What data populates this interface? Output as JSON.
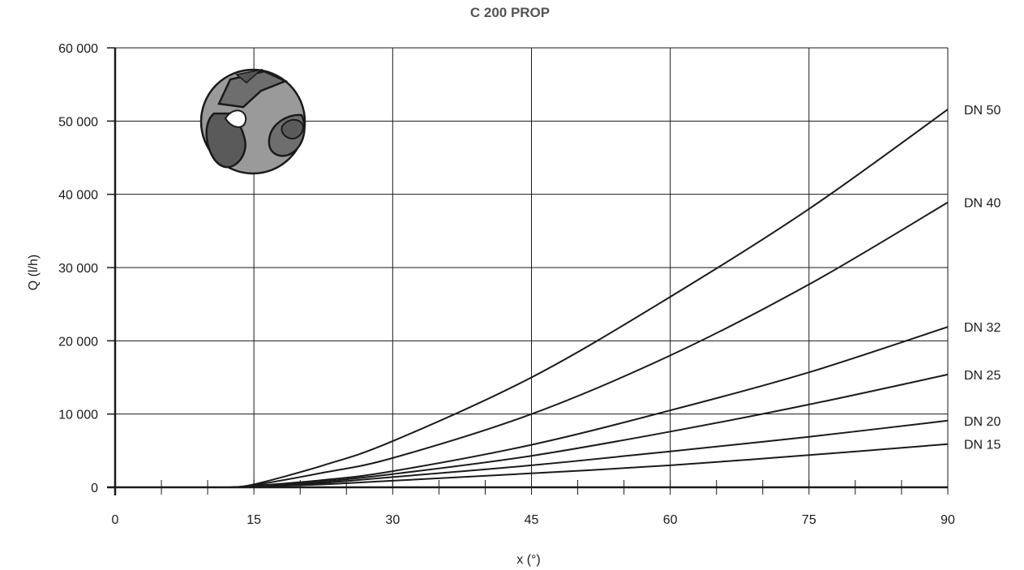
{
  "chart_data": {
    "type": "line",
    "title": "C 200 PROP",
    "xlabel": "x (°)",
    "ylabel": "Q (l/h)",
    "xlim": [
      0,
      90
    ],
    "ylim": [
      0,
      60000
    ],
    "x_ticks": [
      "0",
      "15",
      "30",
      "45",
      "60",
      "75",
      "90"
    ],
    "y_ticks": [
      "0",
      "10 000",
      "20 000",
      "30 000",
      "40 000",
      "50 000",
      "60 000"
    ],
    "grid": true,
    "line_color": "#1a1a1a",
    "series": [
      {
        "name": "DN 50",
        "x": [
          12.5,
          15,
          22.5,
          30,
          45,
          60,
          75,
          90
        ],
        "y": [
          0,
          400,
          3000,
          6300,
          15000,
          26000,
          38000,
          51600
        ]
      },
      {
        "name": "DN 40",
        "x": [
          12.5,
          15,
          22.5,
          30,
          45,
          60,
          75,
          90
        ],
        "y": [
          0,
          300,
          2000,
          4000,
          10000,
          18000,
          27700,
          38900
        ]
      },
      {
        "name": "DN 32",
        "x": [
          12.5,
          15,
          22.5,
          30,
          45,
          60,
          75,
          90
        ],
        "y": [
          0,
          200,
          1000,
          2200,
          5800,
          10500,
          15700,
          21900
        ]
      },
      {
        "name": "DN 25",
        "x": [
          12.5,
          15,
          22.5,
          30,
          45,
          60,
          75,
          90
        ],
        "y": [
          0,
          150,
          800,
          1800,
          4300,
          7600,
          11300,
          15400
        ]
      },
      {
        "name": "DN 20",
        "x": [
          12.5,
          15,
          22.5,
          30,
          45,
          60,
          75,
          90
        ],
        "y": [
          0,
          100,
          600,
          1400,
          3000,
          4900,
          6900,
          9100
        ]
      },
      {
        "name": "DN 15",
        "x": [
          12.5,
          15,
          22.5,
          30,
          45,
          60,
          75,
          90
        ],
        "y": [
          0,
          80,
          400,
          900,
          1900,
          3000,
          4400,
          5900
        ]
      }
    ],
    "icon": "ball-valve-icon"
  }
}
